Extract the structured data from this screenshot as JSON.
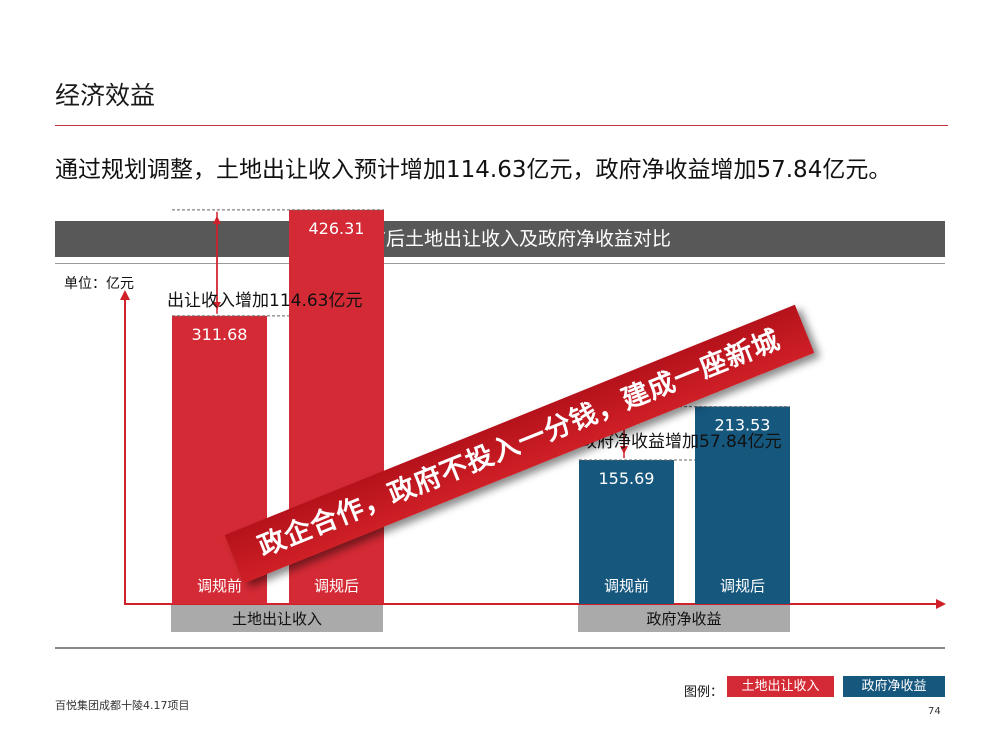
{
  "page": {
    "title": "经济效益",
    "summary": "通过规划调整，土地出让收入预计增加114.63亿元，政府净收益增加57.84亿元。",
    "footer": "百悦集团成都十陵4.17项目",
    "page_number": "74"
  },
  "chart_header": "调规前后土地出让收入及政府净收益对比",
  "unit_label": "单位：亿元",
  "banner": "政企合作，政府不投入一分钱，建成一座新城",
  "legend": {
    "label": "图例：",
    "items": [
      {
        "name": "土地出让收入",
        "color": "#d42a35"
      },
      {
        "name": "政府净收益",
        "color": "#16577d"
      }
    ]
  },
  "chart_data": {
    "type": "bar",
    "groups": [
      {
        "name": "土地出让收入",
        "color": "#d42a35",
        "bars": [
          {
            "label": "调规前",
            "value": 311.68,
            "value_label": "311.68"
          },
          {
            "label": "调规后",
            "value": 426.31,
            "value_label": "426.31"
          }
        ],
        "annotation": "出让收入增加114.63亿元",
        "increase": 114.63
      },
      {
        "name": "政府净收益",
        "color": "#16577d",
        "bars": [
          {
            "label": "调规前",
            "value": 155.69,
            "value_label": "155.69"
          },
          {
            "label": "调规后",
            "value": 213.53,
            "value_label": "213.53"
          }
        ],
        "annotation": "政府净收益增加57.84亿元",
        "increase": 57.84
      }
    ],
    "ylabel": "单位：亿元",
    "ylim": [
      0,
      500
    ],
    "grid": false
  }
}
